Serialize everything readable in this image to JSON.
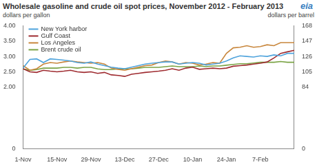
{
  "chart_data": {
    "type": "line",
    "title": "Wholesale gasoline and crude oil spot prices, November 2012 - February 2013",
    "source": "eia",
    "y_label": "dollars per gallon",
    "y2_label": "dollars per barrel",
    "categories": [
      "1-Nov",
      null,
      null,
      null,
      null,
      "15-Nov",
      null,
      null,
      null,
      null,
      "29-Nov",
      null,
      null,
      null,
      null,
      "13-Dec",
      null,
      null,
      null,
      null,
      "27-Dec",
      null,
      null,
      null,
      null,
      "10-Jan",
      null,
      null,
      null,
      null,
      "24-Jan",
      null,
      null,
      null,
      null,
      "7-Feb",
      null,
      null,
      null,
      null,
      null
    ],
    "series": [
      {
        "name": "New York harbor",
        "color": "#4ea3dc",
        "values": [
          2.62,
          2.9,
          2.92,
          2.8,
          2.92,
          2.9,
          2.88,
          2.85,
          2.8,
          2.78,
          2.82,
          2.75,
          2.7,
          2.65,
          2.62,
          2.6,
          2.65,
          2.7,
          2.75,
          2.78,
          2.8,
          2.82,
          2.82,
          2.75,
          2.78,
          2.8,
          2.78,
          2.72,
          2.75,
          2.78,
          2.85,
          2.95,
          3.02,
          3.0,
          2.98,
          3.02,
          3.0,
          3.05,
          3.02,
          3.1,
          3.1
        ]
      },
      {
        "name": "Gulf Coast",
        "color": "#9e2a2f",
        "values": [
          2.6,
          2.5,
          2.48,
          2.55,
          2.52,
          2.5,
          2.52,
          2.55,
          2.5,
          2.48,
          2.5,
          2.45,
          2.48,
          2.4,
          2.38,
          2.35,
          2.42,
          2.45,
          2.48,
          2.5,
          2.52,
          2.55,
          2.6,
          2.55,
          2.62,
          2.65,
          2.58,
          2.6,
          2.62,
          2.6,
          2.62,
          2.68,
          2.7,
          2.72,
          2.75,
          2.78,
          2.82,
          2.95,
          3.1,
          3.15,
          3.2
        ]
      },
      {
        "name": "Los Angeles",
        "color": "#c8863b",
        "values": [
          2.7,
          2.55,
          2.6,
          2.75,
          2.8,
          2.78,
          2.82,
          2.85,
          2.82,
          2.8,
          2.78,
          2.8,
          2.75,
          2.62,
          2.58,
          2.55,
          2.6,
          2.65,
          2.7,
          2.72,
          2.8,
          2.85,
          2.82,
          2.75,
          2.8,
          2.78,
          2.72,
          2.75,
          2.8,
          2.78,
          3.1,
          3.28,
          3.3,
          3.35,
          3.3,
          3.32,
          3.38,
          3.35,
          3.45,
          3.45,
          3.45
        ]
      },
      {
        "name": "Brent crude oil",
        "color": "#7aa344",
        "axis": "y2",
        "values": [
          109,
          107,
          108,
          110,
          110,
          110,
          111,
          111,
          110,
          111,
          111,
          109,
          108,
          108,
          109,
          109,
          109,
          110,
          111,
          111,
          111,
          112,
          113,
          112,
          112,
          112,
          113,
          112,
          113,
          113,
          114,
          115,
          116,
          116,
          117,
          118,
          118,
          118,
          119,
          118,
          118
        ]
      }
    ],
    "ylim": [
      0,
      4
    ],
    "yticks": [
      0,
      {
        "value": 2,
        "label": "2.00"
      },
      {
        "value": 2.5,
        "label": "2.50"
      },
      {
        "value": 3,
        "label": "3.00"
      },
      {
        "value": 3.5,
        "label": "3.50"
      },
      {
        "value": 4,
        "label": "4.00"
      }
    ],
    "y2lim": [
      0,
      168
    ],
    "y2ticks": [
      0,
      84,
      105,
      126,
      147,
      168
    ],
    "grid": false,
    "legend": "top-left"
  }
}
